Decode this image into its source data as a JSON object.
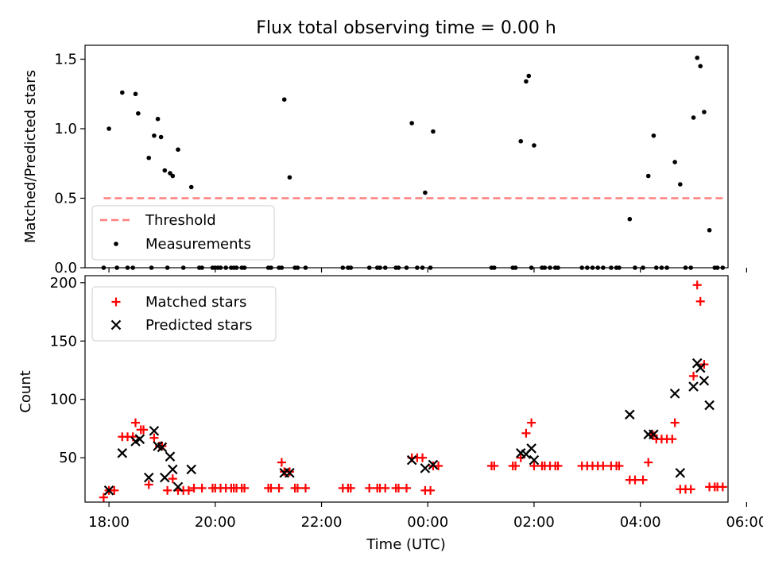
{
  "chart_data": [
    {
      "type": "scatter",
      "title": "Flux total observing time = 0.00 h",
      "xlabel": "",
      "ylabel": "Matched/Predicted stars",
      "xlim": [
        -0.45,
        11.65
      ],
      "ylim": [
        0,
        1.6
      ],
      "yticks": [
        0.0,
        0.5,
        1.0,
        1.5
      ],
      "ytick_labels": [
        "0.0",
        "0.5",
        "1.0",
        "1.5"
      ],
      "legend": {
        "position": "lower-left",
        "entries": [
          "Threshold",
          "Measurements"
        ]
      },
      "threshold": {
        "name": "Threshold",
        "value": 0.5,
        "x_range": [
          -0.1,
          11.6
        ],
        "color": "#ff7f7f"
      },
      "series": [
        {
          "name": "Measurements",
          "color": "#000000",
          "points": [
            [
              -0.1,
              0.0
            ],
            [
              0.0,
              1.0
            ],
            [
              0.15,
              0.0
            ],
            [
              0.25,
              1.26
            ],
            [
              0.35,
              0.0
            ],
            [
              0.45,
              0.0
            ],
            [
              0.5,
              1.25
            ],
            [
              0.55,
              1.11
            ],
            [
              0.75,
              0.79
            ],
            [
              0.8,
              0.0
            ],
            [
              0.85,
              0.95
            ],
            [
              0.92,
              1.07
            ],
            [
              0.98,
              0.94
            ],
            [
              1.05,
              0.7
            ],
            [
              1.1,
              0.0
            ],
            [
              1.15,
              0.68
            ],
            [
              1.2,
              0.66
            ],
            [
              1.3,
              0.85
            ],
            [
              1.4,
              0.0
            ],
            [
              1.55,
              0.58
            ],
            [
              1.7,
              0.0
            ],
            [
              1.75,
              0.0
            ],
            [
              1.95,
              0.0
            ],
            [
              2.0,
              0.0
            ],
            [
              2.05,
              0.0
            ],
            [
              2.1,
              0.0
            ],
            [
              2.2,
              0.0
            ],
            [
              2.3,
              0.0
            ],
            [
              2.35,
              0.0
            ],
            [
              2.4,
              0.0
            ],
            [
              2.5,
              0.0
            ],
            [
              2.55,
              0.0
            ],
            [
              3.0,
              0.0
            ],
            [
              3.05,
              0.0
            ],
            [
              3.2,
              0.0
            ],
            [
              3.25,
              0.0
            ],
            [
              3.3,
              1.21
            ],
            [
              3.4,
              0.65
            ],
            [
              3.5,
              0.0
            ],
            [
              3.55,
              0.0
            ],
            [
              3.7,
              0.0
            ],
            [
              4.4,
              0.0
            ],
            [
              4.5,
              0.0
            ],
            [
              4.55,
              0.0
            ],
            [
              4.9,
              0.0
            ],
            [
              5.05,
              0.0
            ],
            [
              5.1,
              0.0
            ],
            [
              5.2,
              0.0
            ],
            [
              5.4,
              0.0
            ],
            [
              5.45,
              0.0
            ],
            [
              5.6,
              0.0
            ],
            [
              5.7,
              1.04
            ],
            [
              5.8,
              0.0
            ],
            [
              5.9,
              0.0
            ],
            [
              5.95,
              0.54
            ],
            [
              6.05,
              0.0
            ],
            [
              6.1,
              0.98
            ],
            [
              7.2,
              0.0
            ],
            [
              7.25,
              0.0
            ],
            [
              7.6,
              0.0
            ],
            [
              7.65,
              0.0
            ],
            [
              7.75,
              0.91
            ],
            [
              7.85,
              1.34
            ],
            [
              7.9,
              1.38
            ],
            [
              7.95,
              0.0
            ],
            [
              8.0,
              0.88
            ],
            [
              8.15,
              0.0
            ],
            [
              8.2,
              0.0
            ],
            [
              8.3,
              0.0
            ],
            [
              8.4,
              0.0
            ],
            [
              8.45,
              0.0
            ],
            [
              8.9,
              0.0
            ],
            [
              9.0,
              0.0
            ],
            [
              9.1,
              0.0
            ],
            [
              9.2,
              0.0
            ],
            [
              9.3,
              0.0
            ],
            [
              9.45,
              0.0
            ],
            [
              9.55,
              0.0
            ],
            [
              9.6,
              0.0
            ],
            [
              9.8,
              0.35
            ],
            [
              9.9,
              0.0
            ],
            [
              10.05,
              0.0
            ],
            [
              10.15,
              0.66
            ],
            [
              10.25,
              0.95
            ],
            [
              10.3,
              0.0
            ],
            [
              10.4,
              0.0
            ],
            [
              10.5,
              0.0
            ],
            [
              10.65,
              0.76
            ],
            [
              10.75,
              0.6
            ],
            [
              10.85,
              0.0
            ],
            [
              10.95,
              0.0
            ],
            [
              11.0,
              1.08
            ],
            [
              11.07,
              1.51
            ],
            [
              11.13,
              1.45
            ],
            [
              11.2,
              1.12
            ],
            [
              11.3,
              0.27
            ],
            [
              11.4,
              0.0
            ],
            [
              11.45,
              0.0
            ],
            [
              11.55,
              0.0
            ]
          ]
        }
      ]
    },
    {
      "type": "scatter",
      "title": "",
      "xlabel": "Time (UTC)",
      "ylabel": "Count",
      "xlim": [
        -0.45,
        11.65
      ],
      "ylim": [
        12,
        206
      ],
      "xticks": [
        0,
        2,
        4,
        6,
        8,
        10,
        12
      ],
      "xtick_labels": [
        "18:00",
        "20:00",
        "22:00",
        "00:00",
        "02:00",
        "04:00",
        "06:00"
      ],
      "yticks": [
        50,
        100,
        150,
        200
      ],
      "ytick_labels": [
        "50",
        "100",
        "150",
        "200"
      ],
      "legend": {
        "position": "top-left",
        "entries": [
          "Matched stars",
          "Predicted stars"
        ]
      },
      "series": [
        {
          "name": "Matched stars",
          "marker": "plus",
          "color": "#ff0000",
          "points": [
            [
              -0.1,
              16
            ],
            [
              0.0,
              22
            ],
            [
              0.1,
              22
            ],
            [
              0.25,
              68
            ],
            [
              0.35,
              68
            ],
            [
              0.45,
              68
            ],
            [
              0.5,
              80
            ],
            [
              0.6,
              74
            ],
            [
              0.65,
              74
            ],
            [
              0.75,
              27
            ],
            [
              0.85,
              67
            ],
            [
              0.95,
              60
            ],
            [
              1.0,
              60
            ],
            [
              1.1,
              22
            ],
            [
              1.2,
              32
            ],
            [
              1.3,
              22
            ],
            [
              1.4,
              22
            ],
            [
              1.5,
              22
            ],
            [
              1.6,
              24
            ],
            [
              1.75,
              24
            ],
            [
              1.95,
              24
            ],
            [
              2.0,
              24
            ],
            [
              2.1,
              24
            ],
            [
              2.2,
              24
            ],
            [
              2.3,
              24
            ],
            [
              2.35,
              24
            ],
            [
              2.4,
              24
            ],
            [
              2.5,
              24
            ],
            [
              2.55,
              24
            ],
            [
              3.0,
              24
            ],
            [
              3.05,
              24
            ],
            [
              3.2,
              24
            ],
            [
              3.25,
              46
            ],
            [
              3.3,
              38
            ],
            [
              3.4,
              38
            ],
            [
              3.5,
              24
            ],
            [
              3.55,
              24
            ],
            [
              3.7,
              24
            ],
            [
              4.4,
              24
            ],
            [
              4.5,
              24
            ],
            [
              4.55,
              24
            ],
            [
              4.9,
              24
            ],
            [
              5.05,
              24
            ],
            [
              5.1,
              24
            ],
            [
              5.2,
              24
            ],
            [
              5.4,
              24
            ],
            [
              5.45,
              24
            ],
            [
              5.6,
              24
            ],
            [
              5.7,
              50
            ],
            [
              5.8,
              50
            ],
            [
              5.9,
              50
            ],
            [
              5.95,
              22
            ],
            [
              6.05,
              22
            ],
            [
              6.1,
              43
            ],
            [
              6.2,
              43
            ],
            [
              7.2,
              43
            ],
            [
              7.25,
              43
            ],
            [
              7.6,
              43
            ],
            [
              7.65,
              43
            ],
            [
              7.75,
              50
            ],
            [
              7.85,
              71
            ],
            [
              7.95,
              80
            ],
            [
              8.0,
              43
            ],
            [
              8.15,
              43
            ],
            [
              8.2,
              43
            ],
            [
              8.3,
              43
            ],
            [
              8.4,
              43
            ],
            [
              8.45,
              43
            ],
            [
              8.9,
              43
            ],
            [
              9.0,
              43
            ],
            [
              9.1,
              43
            ],
            [
              9.2,
              43
            ],
            [
              9.3,
              43
            ],
            [
              9.45,
              43
            ],
            [
              9.55,
              43
            ],
            [
              9.6,
              43
            ],
            [
              9.8,
              31
            ],
            [
              9.9,
              31
            ],
            [
              10.05,
              31
            ],
            [
              10.15,
              46
            ],
            [
              10.2,
              70
            ],
            [
              10.25,
              69
            ],
            [
              10.3,
              66
            ],
            [
              10.4,
              66
            ],
            [
              10.5,
              66
            ],
            [
              10.6,
              66
            ],
            [
              10.65,
              80
            ],
            [
              10.75,
              23
            ],
            [
              10.85,
              23
            ],
            [
              10.95,
              23
            ],
            [
              11.0,
              120
            ],
            [
              11.07,
              198
            ],
            [
              11.13,
              184
            ],
            [
              11.2,
              130
            ],
            [
              11.3,
              25
            ],
            [
              11.4,
              25
            ],
            [
              11.45,
              25
            ],
            [
              11.55,
              25
            ]
          ]
        },
        {
          "name": "Predicted stars",
          "marker": "x",
          "color": "#000000",
          "points": [
            [
              0.0,
              22
            ],
            [
              0.25,
              54
            ],
            [
              0.5,
              64
            ],
            [
              0.58,
              66
            ],
            [
              0.75,
              33
            ],
            [
              0.85,
              73
            ],
            [
              0.92,
              60
            ],
            [
              1.0,
              59
            ],
            [
              1.05,
              33
            ],
            [
              1.15,
              51
            ],
            [
              1.2,
              40
            ],
            [
              1.3,
              25
            ],
            [
              1.55,
              40
            ],
            [
              3.3,
              37
            ],
            [
              3.4,
              37
            ],
            [
              5.7,
              48
            ],
            [
              5.95,
              41
            ],
            [
              6.1,
              44
            ],
            [
              7.75,
              54
            ],
            [
              7.85,
              53
            ],
            [
              7.95,
              58
            ],
            [
              8.0,
              48
            ],
            [
              9.8,
              87
            ],
            [
              10.15,
              70
            ],
            [
              10.25,
              70
            ],
            [
              10.65,
              105
            ],
            [
              10.75,
              37
            ],
            [
              11.0,
              111
            ],
            [
              11.07,
              131
            ],
            [
              11.13,
              127
            ],
            [
              11.2,
              116
            ],
            [
              11.3,
              95
            ]
          ]
        }
      ]
    }
  ]
}
